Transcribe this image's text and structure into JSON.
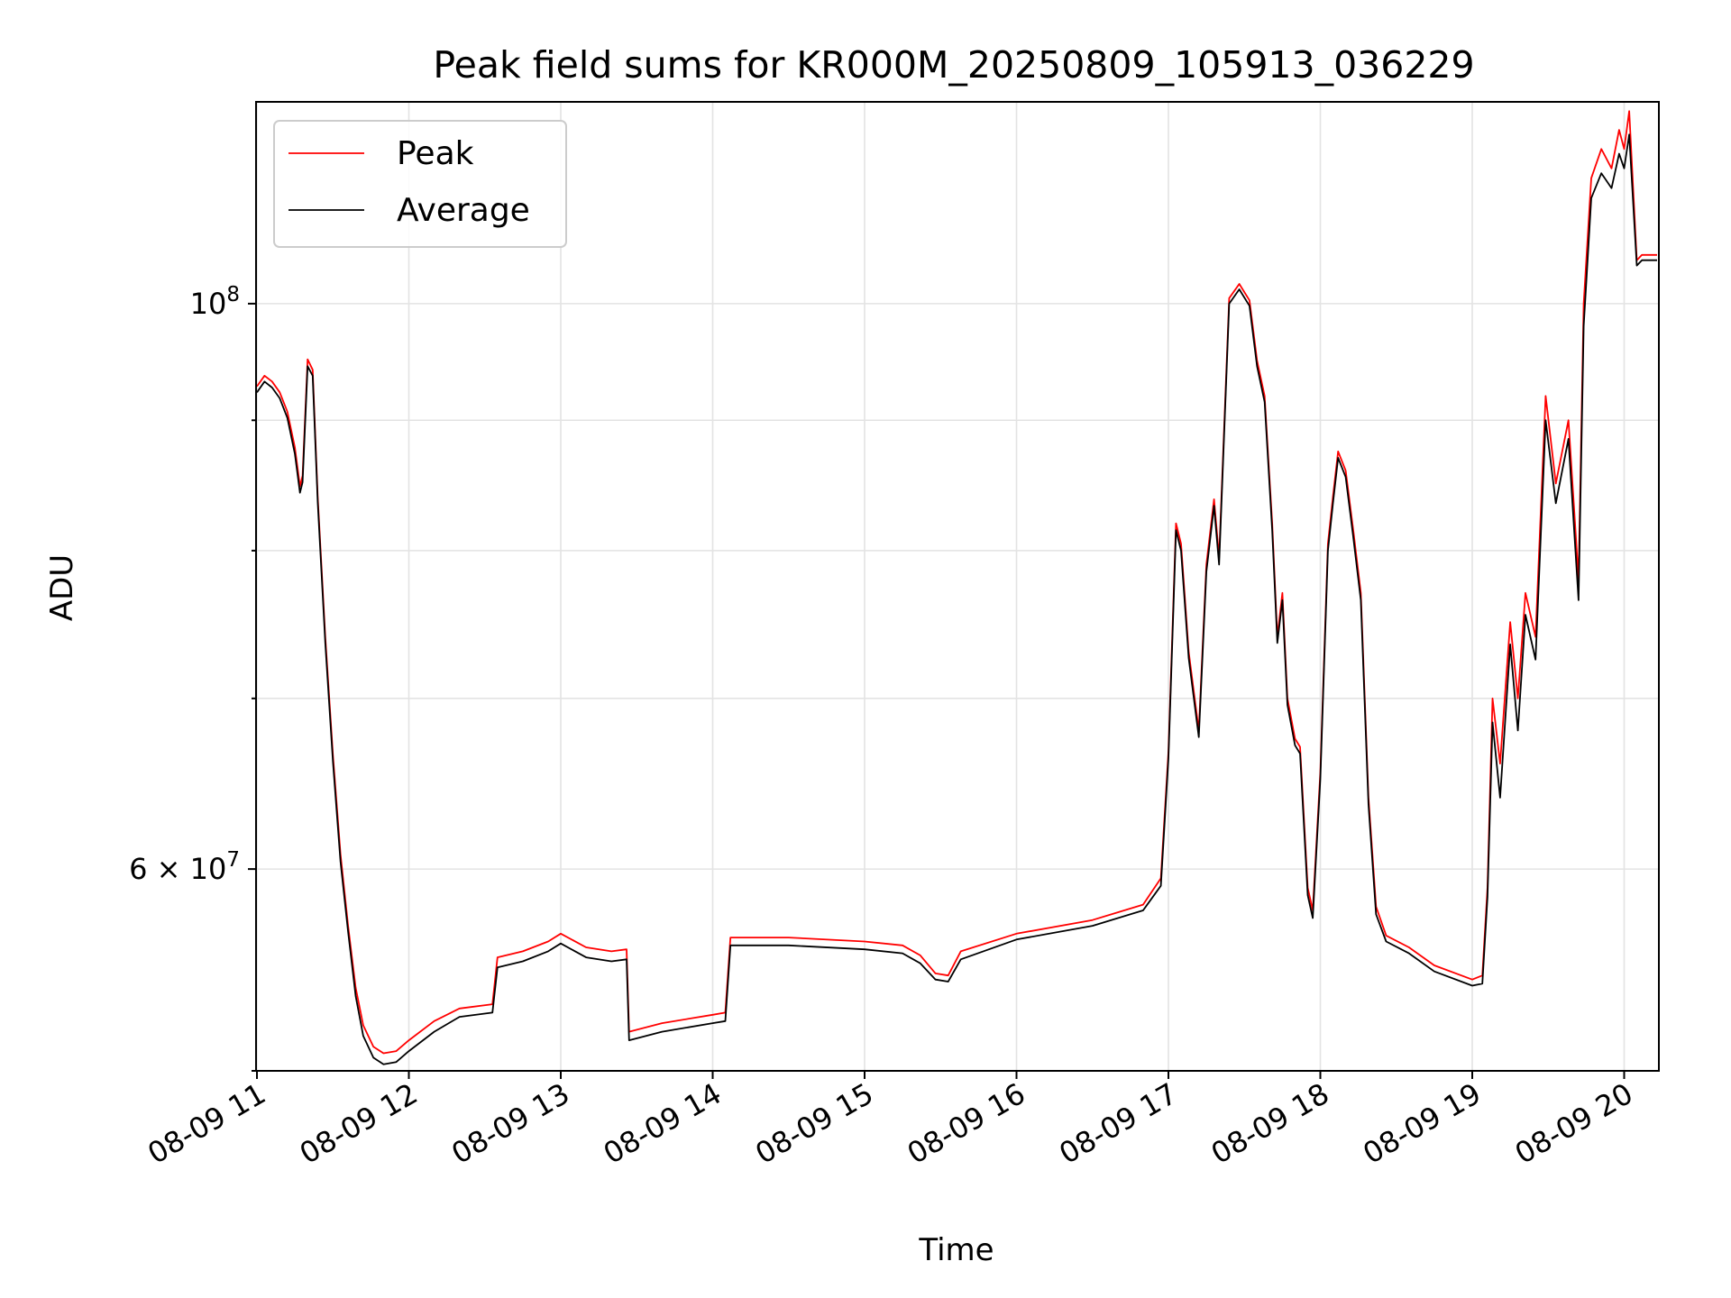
{
  "chart_data": {
    "type": "line",
    "title": "Peak field sums for KR000M_20250809_105913_036229",
    "xlabel": "Time",
    "ylabel": "ADU",
    "yscale": "log",
    "grid": true,
    "legend_position": "top-left",
    "xlim": [
      "2025-08-09 11:00",
      "2025-08-09 20:00"
    ],
    "ylim": [
      50000000,
      120000000
    ],
    "x_ticks": [
      {
        "value": "2025-08-09 11:00",
        "label": "08-09 11"
      },
      {
        "value": "2025-08-09 12:00",
        "label": "08-09 12"
      },
      {
        "value": "2025-08-09 13:00",
        "label": "08-09 13"
      },
      {
        "value": "2025-08-09 14:00",
        "label": "08-09 14"
      },
      {
        "value": "2025-08-09 15:00",
        "label": "08-09 15"
      },
      {
        "value": "2025-08-09 16:00",
        "label": "08-09 16"
      },
      {
        "value": "2025-08-09 17:00",
        "label": "08-09 17"
      },
      {
        "value": "2025-08-09 18:00",
        "label": "08-09 18"
      },
      {
        "value": "2025-08-09 19:00",
        "label": "08-09 19"
      },
      {
        "value": "2025-08-09 20:00",
        "label": "08-09 20"
      }
    ],
    "y_ticks_major": [
      {
        "value": 60000000,
        "label_mantissa": "6 × 10",
        "label_exponent": "7"
      },
      {
        "value": 100000000,
        "label_mantissa": "10",
        "label_exponent": "8"
      }
    ],
    "y_ticks_minor": [
      50000000,
      70000000,
      80000000,
      90000000
    ],
    "series": [
      {
        "name": "Peak",
        "color": "#ff0000",
        "points": [
          [
            "2025-08-09 11:00",
            92800000
          ],
          [
            "2025-08-09 11:03",
            93700000
          ],
          [
            "2025-08-09 11:06",
            93200000
          ],
          [
            "2025-08-09 11:09",
            92300000
          ],
          [
            "2025-08-09 11:12",
            90700000
          ],
          [
            "2025-08-09 11:15",
            87800000
          ],
          [
            "2025-08-09 11:17",
            84800000
          ],
          [
            "2025-08-09 11:18",
            85600000
          ],
          [
            "2025-08-09 11:20",
            95100000
          ],
          [
            "2025-08-09 11:22",
            94200000
          ],
          [
            "2025-08-09 11:24",
            84000000
          ],
          [
            "2025-08-09 11:27",
            74000000
          ],
          [
            "2025-08-09 11:30",
            66500000
          ],
          [
            "2025-08-09 11:33",
            60800000
          ],
          [
            "2025-08-09 11:36",
            57000000
          ],
          [
            "2025-08-09 11:39",
            53900000
          ],
          [
            "2025-08-09 11:42",
            52100000
          ],
          [
            "2025-08-09 11:46",
            51100000
          ],
          [
            "2025-08-09 11:50",
            50800000
          ],
          [
            "2025-08-09 11:55",
            50900000
          ],
          [
            "2025-08-09 12:00",
            51400000
          ],
          [
            "2025-08-09 12:10",
            52300000
          ],
          [
            "2025-08-09 12:20",
            52900000
          ],
          [
            "2025-08-09 12:33",
            53100000
          ],
          [
            "2025-08-09 12:35",
            55400000
          ],
          [
            "2025-08-09 12:45",
            55700000
          ],
          [
            "2025-08-09 12:55",
            56200000
          ],
          [
            "2025-08-09 13:00",
            56600000
          ],
          [
            "2025-08-09 13:10",
            55900000
          ],
          [
            "2025-08-09 13:20",
            55700000
          ],
          [
            "2025-08-09 13:26",
            55800000
          ],
          [
            "2025-08-09 13:27",
            51800000
          ],
          [
            "2025-08-09 13:40",
            52200000
          ],
          [
            "2025-08-09 14:00",
            52600000
          ],
          [
            "2025-08-09 14:05",
            52700000
          ],
          [
            "2025-08-09 14:07",
            56400000
          ],
          [
            "2025-08-09 14:30",
            56400000
          ],
          [
            "2025-08-09 15:00",
            56200000
          ],
          [
            "2025-08-09 15:15",
            56000000
          ],
          [
            "2025-08-09 15:22",
            55500000
          ],
          [
            "2025-08-09 15:28",
            54600000
          ],
          [
            "2025-08-09 15:33",
            54500000
          ],
          [
            "2025-08-09 15:38",
            55700000
          ],
          [
            "2025-08-09 16:00",
            56600000
          ],
          [
            "2025-08-09 16:30",
            57300000
          ],
          [
            "2025-08-09 16:50",
            58100000
          ],
          [
            "2025-08-09 16:57",
            59500000
          ],
          [
            "2025-08-09 17:00",
            66700000
          ],
          [
            "2025-08-09 17:03",
            82000000
          ],
          [
            "2025-08-09 17:05",
            80500000
          ],
          [
            "2025-08-09 17:08",
            73000000
          ],
          [
            "2025-08-09 17:12",
            68000000
          ],
          [
            "2025-08-09 17:15",
            79000000
          ],
          [
            "2025-08-09 17:18",
            83800000
          ],
          [
            "2025-08-09 17:20",
            79500000
          ],
          [
            "2025-08-09 17:24",
            100500000
          ],
          [
            "2025-08-09 17:28",
            101800000
          ],
          [
            "2025-08-09 17:32",
            100300000
          ],
          [
            "2025-08-09 17:35",
            95000000
          ],
          [
            "2025-08-09 17:38",
            92000000
          ],
          [
            "2025-08-09 17:41",
            82000000
          ],
          [
            "2025-08-09 17:43",
            74000000
          ],
          [
            "2025-08-09 17:45",
            77000000
          ],
          [
            "2025-08-09 17:47",
            70000000
          ],
          [
            "2025-08-09 17:50",
            67500000
          ],
          [
            "2025-08-09 17:52",
            67000000
          ],
          [
            "2025-08-09 17:55",
            59000000
          ],
          [
            "2025-08-09 17:57",
            57800000
          ],
          [
            "2025-08-09 18:00",
            65500000
          ],
          [
            "2025-08-09 18:03",
            80500000
          ],
          [
            "2025-08-09 18:05",
            84000000
          ],
          [
            "2025-08-09 18:07",
            87500000
          ],
          [
            "2025-08-09 18:10",
            86000000
          ],
          [
            "2025-08-09 18:13",
            81500000
          ],
          [
            "2025-08-09 18:16",
            77000000
          ],
          [
            "2025-08-09 18:19",
            64000000
          ],
          [
            "2025-08-09 18:22",
            58000000
          ],
          [
            "2025-08-09 18:26",
            56500000
          ],
          [
            "2025-08-09 18:35",
            55900000
          ],
          [
            "2025-08-09 18:45",
            55000000
          ],
          [
            "2025-08-09 19:00",
            54300000
          ],
          [
            "2025-08-09 19:04",
            54500000
          ],
          [
            "2025-08-09 19:06",
            59000000
          ],
          [
            "2025-08-09 19:08",
            70000000
          ],
          [
            "2025-08-09 19:11",
            66000000
          ],
          [
            "2025-08-09 19:15",
            75000000
          ],
          [
            "2025-08-09 19:18",
            70000000
          ],
          [
            "2025-08-09 19:21",
            77000000
          ],
          [
            "2025-08-09 19:25",
            74000000
          ],
          [
            "2025-08-09 19:29",
            92000000
          ],
          [
            "2025-08-09 19:33",
            85000000
          ],
          [
            "2025-08-09 19:38",
            90000000
          ],
          [
            "2025-08-09 19:42",
            78000000
          ],
          [
            "2025-08-09 19:44",
            100000000
          ],
          [
            "2025-08-09 19:47",
            112000000
          ],
          [
            "2025-08-09 19:51",
            115000000
          ],
          [
            "2025-08-09 19:55",
            113000000
          ],
          [
            "2025-08-09 19:58",
            117000000
          ],
          [
            "2025-08-09 20:00",
            115000000
          ],
          [
            "2025-08-09 20:02",
            119000000
          ],
          [
            "2025-08-09 20:05",
            104000000
          ],
          [
            "2025-08-09 20:07",
            104500000
          ],
          [
            "2025-08-09 20:13",
            104500000
          ]
        ]
      },
      {
        "name": "Average",
        "color": "#000000",
        "points": [
          [
            "2025-08-09 11:00",
            92300000
          ],
          [
            "2025-08-09 11:03",
            93200000
          ],
          [
            "2025-08-09 11:06",
            92700000
          ],
          [
            "2025-08-09 11:09",
            91800000
          ],
          [
            "2025-08-09 11:12",
            90200000
          ],
          [
            "2025-08-09 11:15",
            87300000
          ],
          [
            "2025-08-09 11:17",
            84300000
          ],
          [
            "2025-08-09 11:18",
            85100000
          ],
          [
            "2025-08-09 11:20",
            94500000
          ],
          [
            "2025-08-09 11:22",
            93700000
          ],
          [
            "2025-08-09 11:24",
            83600000
          ],
          [
            "2025-08-09 11:27",
            73600000
          ],
          [
            "2025-08-09 11:30",
            66100000
          ],
          [
            "2025-08-09 11:33",
            60400000
          ],
          [
            "2025-08-09 11:36",
            56700000
          ],
          [
            "2025-08-09 11:39",
            53500000
          ],
          [
            "2025-08-09 11:42",
            51600000
          ],
          [
            "2025-08-09 11:46",
            50600000
          ],
          [
            "2025-08-09 11:50",
            50300000
          ],
          [
            "2025-08-09 11:55",
            50400000
          ],
          [
            "2025-08-09 12:00",
            50900000
          ],
          [
            "2025-08-09 12:10",
            51800000
          ],
          [
            "2025-08-09 12:20",
            52500000
          ],
          [
            "2025-08-09 12:33",
            52700000
          ],
          [
            "2025-08-09 12:35",
            54900000
          ],
          [
            "2025-08-09 12:45",
            55200000
          ],
          [
            "2025-08-09 12:55",
            55700000
          ],
          [
            "2025-08-09 13:00",
            56100000
          ],
          [
            "2025-08-09 13:10",
            55400000
          ],
          [
            "2025-08-09 13:20",
            55200000
          ],
          [
            "2025-08-09 13:26",
            55300000
          ],
          [
            "2025-08-09 13:27",
            51400000
          ],
          [
            "2025-08-09 13:40",
            51800000
          ],
          [
            "2025-08-09 14:00",
            52200000
          ],
          [
            "2025-08-09 14:05",
            52300000
          ],
          [
            "2025-08-09 14:07",
            56000000
          ],
          [
            "2025-08-09 14:30",
            56000000
          ],
          [
            "2025-08-09 15:00",
            55800000
          ],
          [
            "2025-08-09 15:15",
            55600000
          ],
          [
            "2025-08-09 15:22",
            55100000
          ],
          [
            "2025-08-09 15:28",
            54300000
          ],
          [
            "2025-08-09 15:33",
            54200000
          ],
          [
            "2025-08-09 15:38",
            55300000
          ],
          [
            "2025-08-09 16:00",
            56300000
          ],
          [
            "2025-08-09 16:30",
            57000000
          ],
          [
            "2025-08-09 16:50",
            57800000
          ],
          [
            "2025-08-09 16:57",
            59100000
          ],
          [
            "2025-08-09 17:00",
            66300000
          ],
          [
            "2025-08-09 17:03",
            81500000
          ],
          [
            "2025-08-09 17:05",
            80000000
          ],
          [
            "2025-08-09 17:08",
            72600000
          ],
          [
            "2025-08-09 17:12",
            67600000
          ],
          [
            "2025-08-09 17:15",
            78500000
          ],
          [
            "2025-08-09 17:18",
            83300000
          ],
          [
            "2025-08-09 17:20",
            79000000
          ],
          [
            "2025-08-09 17:24",
            100000000
          ],
          [
            "2025-08-09 17:28",
            101300000
          ],
          [
            "2025-08-09 17:32",
            99800000
          ],
          [
            "2025-08-09 17:35",
            94500000
          ],
          [
            "2025-08-09 17:38",
            91500000
          ],
          [
            "2025-08-09 17:41",
            81500000
          ],
          [
            "2025-08-09 17:43",
            73600000
          ],
          [
            "2025-08-09 17:45",
            76500000
          ],
          [
            "2025-08-09 17:47",
            69600000
          ],
          [
            "2025-08-09 17:50",
            67100000
          ],
          [
            "2025-08-09 17:52",
            66600000
          ],
          [
            "2025-08-09 17:55",
            58600000
          ],
          [
            "2025-08-09 17:57",
            57400000
          ],
          [
            "2025-08-09 18:00",
            65100000
          ],
          [
            "2025-08-09 18:03",
            80000000
          ],
          [
            "2025-08-09 18:05",
            83500000
          ],
          [
            "2025-08-09 18:07",
            87000000
          ],
          [
            "2025-08-09 18:10",
            85500000
          ],
          [
            "2025-08-09 18:13",
            81000000
          ],
          [
            "2025-08-09 18:16",
            76500000
          ],
          [
            "2025-08-09 18:19",
            63600000
          ],
          [
            "2025-08-09 18:22",
            57600000
          ],
          [
            "2025-08-09 18:26",
            56200000
          ],
          [
            "2025-08-09 18:35",
            55600000
          ],
          [
            "2025-08-09 18:45",
            54700000
          ],
          [
            "2025-08-09 19:00",
            54000000
          ],
          [
            "2025-08-09 19:04",
            54100000
          ],
          [
            "2025-08-09 19:06",
            58500000
          ],
          [
            "2025-08-09 19:08",
            68500000
          ],
          [
            "2025-08-09 19:11",
            64000000
          ],
          [
            "2025-08-09 19:15",
            73500000
          ],
          [
            "2025-08-09 19:18",
            68000000
          ],
          [
            "2025-08-09 19:21",
            75500000
          ],
          [
            "2025-08-09 19:25",
            72500000
          ],
          [
            "2025-08-09 19:29",
            90000000
          ],
          [
            "2025-08-09 19:33",
            83500000
          ],
          [
            "2025-08-09 19:38",
            88500000
          ],
          [
            "2025-08-09 19:42",
            76500000
          ],
          [
            "2025-08-09 19:44",
            98000000
          ],
          [
            "2025-08-09 19:47",
            110000000
          ],
          [
            "2025-08-09 19:51",
            112500000
          ],
          [
            "2025-08-09 19:55",
            111000000
          ],
          [
            "2025-08-09 19:58",
            114500000
          ],
          [
            "2025-08-09 20:00",
            113000000
          ],
          [
            "2025-08-09 20:02",
            116500000
          ],
          [
            "2025-08-09 20:05",
            103500000
          ],
          [
            "2025-08-09 20:07",
            104000000
          ],
          [
            "2025-08-09 20:13",
            104000000
          ]
        ]
      }
    ]
  }
}
